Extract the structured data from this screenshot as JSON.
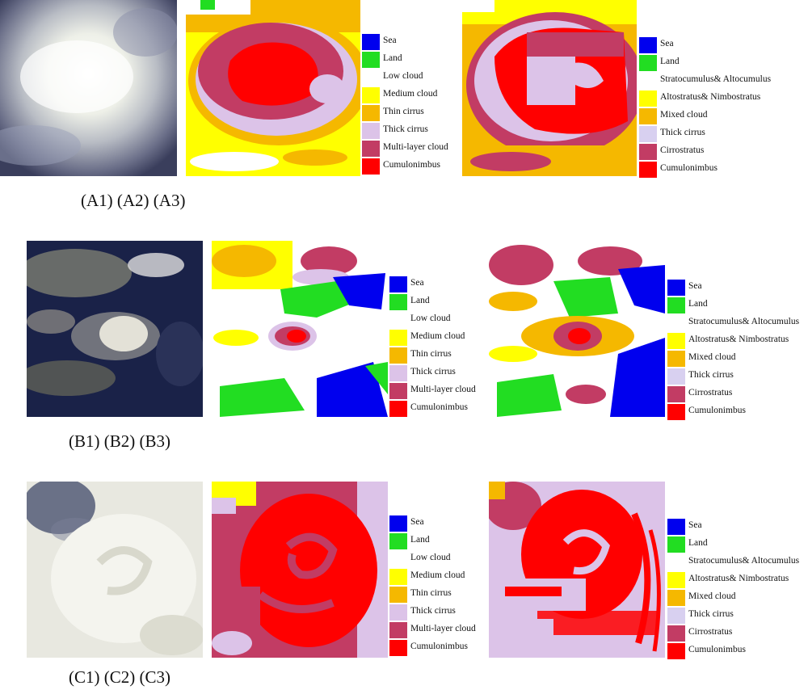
{
  "legend_six_class": {
    "items": [
      {
        "label": "Sea",
        "color": "#0000ee"
      },
      {
        "label": "Land",
        "color": "#22dd22"
      },
      {
        "label": "Low cloud",
        "color": "#ffffff"
      },
      {
        "label": "Medium cloud",
        "color": "#ffff00"
      },
      {
        "label": "Thin cirrus",
        "color": "#f5b800"
      },
      {
        "label": "Thick cirrus",
        "color": "#dcc3e8"
      },
      {
        "label": "Multi-layer cloud",
        "color": "#c23c64"
      },
      {
        "label": "Cumulonimbus",
        "color": "#ff0000"
      }
    ]
  },
  "legend_ten_class": {
    "items": [
      {
        "label": "Sea",
        "color": "#0000ee"
      },
      {
        "label": "Land",
        "color": "#22dd22"
      },
      {
        "label": "Stratocumulus& Altocumulus",
        "color": "#ffffff"
      },
      {
        "label": "Altostratus& Nimbostratus",
        "color": "#ffff00"
      },
      {
        "label": "Mixed cloud",
        "color": "#f5b800"
      },
      {
        "label": "Thick cirrus",
        "color": "#d8d0f0"
      },
      {
        "label": "Cirrostratus",
        "color": "#c23c64"
      },
      {
        "label": "Cumulonimbus",
        "color": "#ff0000"
      }
    ]
  },
  "captions": {
    "row_a": "(A1) (A2) (A3)",
    "row_b": "(B1) (B2) (B3)",
    "row_c": "(C1) (C2) (C3)"
  },
  "colors": {
    "sea": "#0000ee",
    "land": "#22dd22",
    "low_cloud": "#ffffff",
    "medium_cloud": "#ffff00",
    "thin_cirrus": "#f5b800",
    "thick_cirrus": "#dcc3e8",
    "multi_layer": "#c23c64",
    "cumulonimbus": "#ff0000"
  }
}
